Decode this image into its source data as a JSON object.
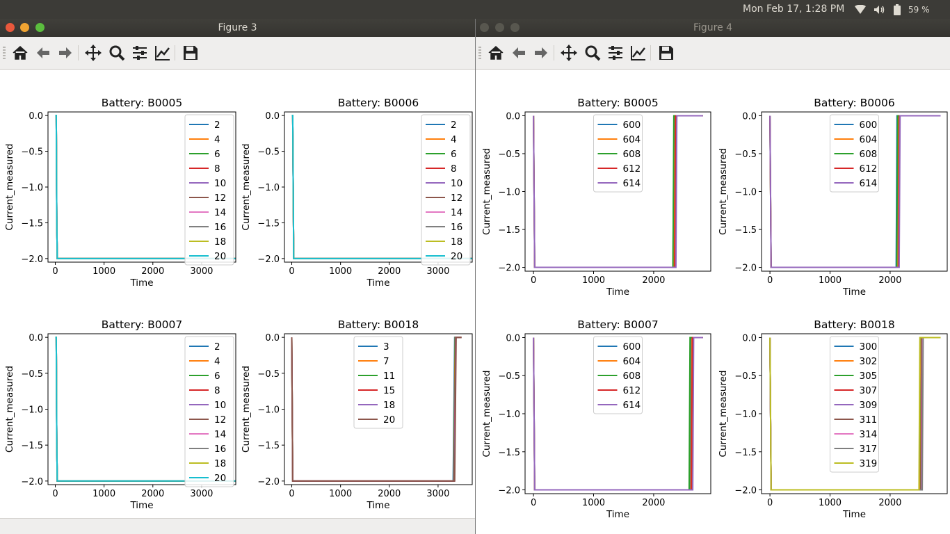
{
  "topbar": {
    "clock": "Mon Feb 17,  1:28 PM",
    "battery": "59 %"
  },
  "windows": [
    {
      "title": "Figure 3",
      "active": true
    },
    {
      "title": "Figure 4",
      "active": false
    }
  ],
  "toolbar_icons": [
    "home-icon",
    "back-arrow-icon",
    "forward-arrow-icon",
    "pan-icon",
    "zoom-icon",
    "subplots-icon",
    "edit-axes-icon",
    "save-icon"
  ],
  "series_colors": [
    "#1f77b4",
    "#ff7f0e",
    "#2ca02c",
    "#d62728",
    "#9467bd",
    "#8c564b",
    "#e377c2",
    "#7f7f7f",
    "#bcbd22",
    "#17becf"
  ],
  "chart_data": [
    {
      "figure": "Figure 3",
      "type": "line",
      "title": "Battery: B0005",
      "xlabel": "Time",
      "ylabel": "Current_measured",
      "xlim": [
        -150,
        3700
      ],
      "ylim": [
        -2.05,
        0.05
      ],
      "xticks": [
        0,
        1000,
        2000,
        3000
      ],
      "xtick_labels": [
        "0",
        "1000",
        "2000",
        "3000"
      ],
      "yticks": [
        0,
        -0.5,
        -1,
        -1.5,
        -2
      ],
      "ytick_labels": [
        "0.0",
        "−0.5",
        "−1.0",
        "−1.5",
        "−2.0"
      ],
      "legend_position": "upper right",
      "series": [
        {
          "name": "2"
        },
        {
          "name": "4"
        },
        {
          "name": "6"
        },
        {
          "name": "8"
        },
        {
          "name": "10"
        },
        {
          "name": "12"
        },
        {
          "name": "14"
        },
        {
          "name": "16"
        },
        {
          "name": "18"
        },
        {
          "name": "20"
        }
      ],
      "x": [
        0,
        20,
        30,
        40,
        3700
      ],
      "y": [
        0,
        0,
        -1.4,
        -2,
        -2
      ]
    },
    {
      "figure": "Figure 3",
      "type": "line",
      "title": "Battery: B0006",
      "xlabel": "Time",
      "ylabel": "Current_measured",
      "xlim": [
        -150,
        3700
      ],
      "ylim": [
        -2.05,
        0.05
      ],
      "xticks": [
        0,
        1000,
        2000,
        3000
      ],
      "xtick_labels": [
        "0",
        "1000",
        "2000",
        "3000"
      ],
      "yticks": [
        0,
        -0.5,
        -1,
        -1.5,
        -2
      ],
      "ytick_labels": [
        "0.0",
        "−0.5",
        "−1.0",
        "−1.5",
        "−2.0"
      ],
      "legend_position": "upper right",
      "series": [
        {
          "name": "2"
        },
        {
          "name": "4"
        },
        {
          "name": "6"
        },
        {
          "name": "8"
        },
        {
          "name": "10"
        },
        {
          "name": "12"
        },
        {
          "name": "14"
        },
        {
          "name": "16"
        },
        {
          "name": "18"
        },
        {
          "name": "20"
        }
      ],
      "x": [
        0,
        20,
        30,
        40,
        3700
      ],
      "y": [
        0,
        0,
        -1.0,
        -2,
        -2
      ]
    },
    {
      "figure": "Figure 3",
      "type": "line",
      "title": "Battery: B0007",
      "xlabel": "Time",
      "ylabel": "Current_measured",
      "xlim": [
        -150,
        3700
      ],
      "ylim": [
        -2.05,
        0.05
      ],
      "xticks": [
        0,
        1000,
        2000,
        3000
      ],
      "xtick_labels": [
        "0",
        "1000",
        "2000",
        "3000"
      ],
      "yticks": [
        0,
        -0.5,
        -1,
        -1.5,
        -2
      ],
      "ytick_labels": [
        "0.0",
        "−0.5",
        "−1.0",
        "−1.5",
        "−2.0"
      ],
      "legend_position": "upper right",
      "series": [
        {
          "name": "2"
        },
        {
          "name": "4"
        },
        {
          "name": "6"
        },
        {
          "name": "8"
        },
        {
          "name": "10"
        },
        {
          "name": "12"
        },
        {
          "name": "14"
        },
        {
          "name": "16"
        },
        {
          "name": "18"
        },
        {
          "name": "20"
        }
      ],
      "x": [
        0,
        20,
        30,
        40,
        3700
      ],
      "y": [
        0,
        0,
        -1.4,
        -2,
        -2
      ]
    },
    {
      "figure": "Figure 3",
      "type": "line",
      "title": "Battery: B0018",
      "xlabel": "Time",
      "ylabel": "Current_measured",
      "xlim": [
        -150,
        3700
      ],
      "ylim": [
        -2.05,
        0.05
      ],
      "xticks": [
        0,
        1000,
        2000,
        3000
      ],
      "xtick_labels": [
        "0",
        "1000",
        "2000",
        "3000"
      ],
      "yticks": [
        0,
        -0.5,
        -1,
        -1.5,
        -2
      ],
      "ytick_labels": [
        "0.0",
        "−0.5",
        "−1.0",
        "−1.5",
        "−2.0"
      ],
      "legend_position": "upper center",
      "series": [
        {
          "name": "3",
          "x": [
            0,
            20,
            3310,
            3340,
            3400,
            3480
          ],
          "y": [
            0,
            -2,
            -2,
            0,
            0,
            0
          ]
        },
        {
          "name": "7",
          "x": [
            0,
            20,
            3320,
            3350,
            3400,
            3480
          ],
          "y": [
            0,
            -2,
            -2,
            0,
            0,
            0
          ]
        },
        {
          "name": "11",
          "x": [
            0,
            20,
            3325,
            3355,
            3400,
            3480
          ],
          "y": [
            0,
            -2,
            -2,
            0,
            0,
            0
          ]
        },
        {
          "name": "15",
          "x": [
            0,
            20,
            3330,
            3360,
            3400,
            3480
          ],
          "y": [
            0,
            -2,
            -2,
            0,
            0,
            0
          ]
        },
        {
          "name": "18",
          "x": [
            0,
            20,
            3335,
            3365,
            3400,
            3480
          ],
          "y": [
            0,
            -2,
            -2,
            0,
            0,
            0
          ]
        },
        {
          "name": "20",
          "x": [
            0,
            20,
            3340,
            3370,
            3400,
            3480
          ],
          "y": [
            0,
            -2,
            -2,
            0,
            0,
            0
          ]
        }
      ]
    },
    {
      "figure": "Figure 4",
      "type": "line",
      "title": "Battery: B0005",
      "xlabel": "Time",
      "ylabel": "Current_measured",
      "xlim": [
        -140,
        2950
      ],
      "ylim": [
        -2.05,
        0.05
      ],
      "xticks": [
        0,
        1000,
        2000
      ],
      "xtick_labels": [
        "0",
        "1000",
        "2000"
      ],
      "yticks": [
        0,
        -0.5,
        -1,
        -1.5,
        -2
      ],
      "ytick_labels": [
        "0.0",
        "−0.5",
        "−1.0",
        "−1.5",
        "−2.0"
      ],
      "legend_position": "upper center",
      "series": [
        {
          "name": "600",
          "x": [
            0,
            20,
            2320,
            2340,
            2820
          ],
          "y": [
            0,
            -2,
            -2,
            0,
            0
          ]
        },
        {
          "name": "604",
          "x": [
            0,
            20,
            2340,
            2360,
            2820
          ],
          "y": [
            0,
            -2,
            -2,
            0,
            0
          ]
        },
        {
          "name": "608",
          "x": [
            0,
            20,
            2320,
            2335,
            2820
          ],
          "y": [
            0,
            -2,
            -2,
            0,
            0
          ]
        },
        {
          "name": "612",
          "x": [
            0,
            20,
            2350,
            2365,
            2820
          ],
          "y": [
            0,
            -2,
            -2,
            0,
            0
          ]
        },
        {
          "name": "614",
          "x": [
            0,
            20,
            2370,
            2385,
            2820
          ],
          "y": [
            0,
            -2,
            -2,
            0,
            0
          ]
        }
      ]
    },
    {
      "figure": "Figure 4",
      "type": "line",
      "title": "Battery: B0006",
      "xlabel": "Time",
      "ylabel": "Current_measured",
      "xlim": [
        -140,
        2950
      ],
      "ylim": [
        -2.05,
        0.05
      ],
      "xticks": [
        0,
        1000,
        2000
      ],
      "xtick_labels": [
        "0",
        "1000",
        "2000"
      ],
      "yticks": [
        0,
        -0.5,
        -1,
        -1.5,
        -2
      ],
      "ytick_labels": [
        "0.0",
        "−0.5",
        "−1.0",
        "−1.5",
        "−2.0"
      ],
      "legend_position": "upper center",
      "series": [
        {
          "name": "600",
          "x": [
            0,
            20,
            2100,
            2115,
            2840
          ],
          "y": [
            0,
            -2,
            -2,
            0,
            0
          ]
        },
        {
          "name": "604",
          "x": [
            0,
            20,
            2120,
            2135,
            2840
          ],
          "y": [
            0,
            -2,
            -2,
            0,
            0
          ]
        },
        {
          "name": "608",
          "x": [
            0,
            20,
            2110,
            2125,
            2840
          ],
          "y": [
            0,
            -2,
            -2,
            0,
            0
          ]
        },
        {
          "name": "612",
          "x": [
            0,
            20,
            2140,
            2155,
            2840
          ],
          "y": [
            0,
            -2,
            -2,
            0,
            0
          ]
        },
        {
          "name": "614",
          "x": [
            0,
            20,
            2150,
            2165,
            2840
          ],
          "y": [
            0,
            -2,
            -2,
            0,
            0
          ]
        }
      ]
    },
    {
      "figure": "Figure 4",
      "type": "line",
      "title": "Battery: B0007",
      "xlabel": "Time",
      "ylabel": "Current_measured",
      "xlim": [
        -140,
        2950
      ],
      "ylim": [
        -2.05,
        0.05
      ],
      "xticks": [
        0,
        1000,
        2000
      ],
      "xtick_labels": [
        "0",
        "1000",
        "2000"
      ],
      "yticks": [
        0,
        -0.5,
        -1,
        -1.5,
        -2
      ],
      "ytick_labels": [
        "0.0",
        "−0.5",
        "−1.0",
        "−1.5",
        "−2.0"
      ],
      "legend_position": "upper center",
      "series": [
        {
          "name": "600",
          "x": [
            0,
            20,
            2600,
            2615,
            2820
          ],
          "y": [
            0,
            -2,
            -2,
            0,
            0
          ]
        },
        {
          "name": "604",
          "x": [
            0,
            20,
            2620,
            2635,
            2820
          ],
          "y": [
            0,
            -2,
            -2,
            0,
            0
          ]
        },
        {
          "name": "608",
          "x": [
            0,
            20,
            2590,
            2605,
            2820
          ],
          "y": [
            0,
            -2,
            -2,
            0,
            0
          ]
        },
        {
          "name": "612",
          "x": [
            0,
            20,
            2630,
            2645,
            2820
          ],
          "y": [
            0,
            -2,
            -2,
            0,
            0
          ]
        },
        {
          "name": "614",
          "x": [
            0,
            20,
            2650,
            2665,
            2820
          ],
          "y": [
            0,
            -2,
            -2,
            0,
            0
          ]
        }
      ]
    },
    {
      "figure": "Figure 4",
      "type": "line",
      "title": "Battery: B0018",
      "xlabel": "Time",
      "ylabel": "Current_measured",
      "xlim": [
        -140,
        2950
      ],
      "ylim": [
        -2.05,
        0.05
      ],
      "xticks": [
        0,
        1000,
        2000
      ],
      "xtick_labels": [
        "0",
        "1000",
        "2000"
      ],
      "yticks": [
        0,
        -0.5,
        -1,
        -1.5,
        -2
      ],
      "ytick_labels": [
        "0.0",
        "−0.5",
        "−1.0",
        "−1.5",
        "−2.0"
      ],
      "legend_position": "upper center",
      "series": [
        {
          "name": "300",
          "x": [
            0,
            20,
            2500,
            2515,
            2840
          ],
          "y": [
            0,
            -2,
            -2,
            0,
            0
          ]
        },
        {
          "name": "302",
          "x": [
            0,
            20,
            2505,
            2520,
            2840
          ],
          "y": [
            0,
            -2,
            -2,
            0,
            0
          ]
        },
        {
          "name": "305",
          "x": [
            0,
            20,
            2510,
            2525,
            2840
          ],
          "y": [
            0,
            -2,
            -2,
            0,
            0
          ]
        },
        {
          "name": "307",
          "x": [
            0,
            20,
            2515,
            2530,
            2840
          ],
          "y": [
            0,
            -2,
            -2,
            0,
            0
          ]
        },
        {
          "name": "309",
          "x": [
            0,
            20,
            2520,
            2535,
            2840
          ],
          "y": [
            0,
            -2,
            -2,
            0,
            0
          ]
        },
        {
          "name": "311",
          "x": [
            0,
            20,
            2525,
            2540,
            2840
          ],
          "y": [
            0,
            -2,
            -2,
            0,
            0
          ]
        },
        {
          "name": "314",
          "x": [
            0,
            20,
            2530,
            2545,
            2840
          ],
          "y": [
            0,
            -2,
            -2,
            0,
            0
          ]
        },
        {
          "name": "317",
          "x": [
            0,
            20,
            2535,
            2550,
            2840
          ],
          "y": [
            0,
            -2,
            -2,
            0,
            0
          ]
        },
        {
          "name": "319",
          "x": [
            0,
            20,
            2480,
            2495,
            2840
          ],
          "y": [
            0,
            -2,
            -2,
            0,
            0
          ]
        }
      ]
    }
  ]
}
